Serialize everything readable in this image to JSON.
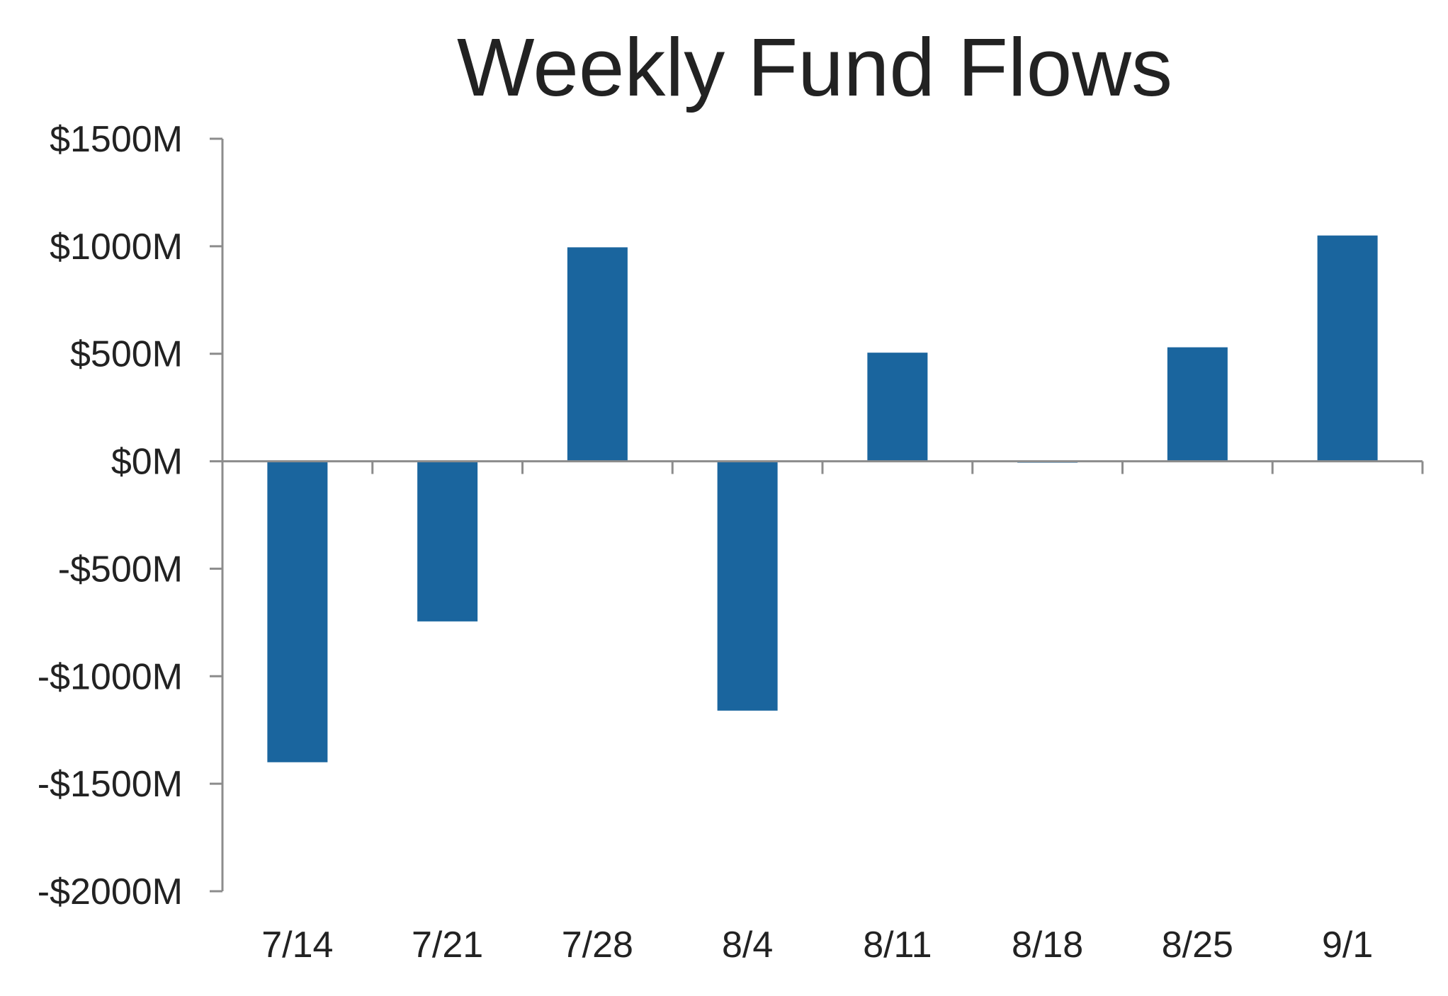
{
  "chart_data": {
    "type": "bar",
    "title": "Weekly Fund Flows",
    "xlabel": "",
    "ylabel": "",
    "categories": [
      "7/14",
      "7/21",
      "7/28",
      "8/4",
      "8/11",
      "8/18",
      "8/25",
      "9/1"
    ],
    "values": [
      -1400,
      -745,
      995,
      -1160,
      505,
      -5,
      530,
      1050
    ],
    "ylim": [
      -2000,
      1500
    ],
    "yticks": [
      1500,
      1000,
      500,
      0,
      -500,
      -1000,
      -1500,
      -2000
    ],
    "ytick_labels": [
      "$1500M",
      "$1000M",
      "$500M",
      "$0M",
      "-$500M",
      "-$1000M",
      "-$1500M",
      "-$2000M"
    ],
    "grid": false,
    "legend": "none",
    "bar_color": "#1a659e",
    "axis_color": "#8c8c8c"
  }
}
